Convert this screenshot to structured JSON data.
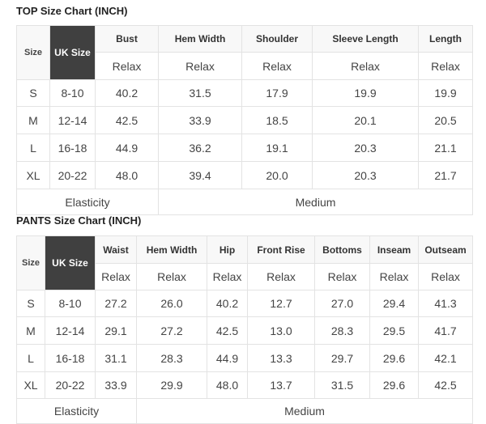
{
  "top": {
    "title": "TOP Size Chart (INCH)",
    "size_label": "Size",
    "uk_label": "UK Size",
    "columns": [
      "Bust",
      "Hem Width",
      "Shoulder",
      "Sleeve Length",
      "Length"
    ],
    "fit": [
      "Relax",
      "Relax",
      "Relax",
      "Relax",
      "Relax"
    ],
    "rows": [
      {
        "size": "S",
        "uk": "8-10",
        "values": [
          "40.2",
          "31.5",
          "17.9",
          "19.9",
          "19.9"
        ]
      },
      {
        "size": "M",
        "uk": "12-14",
        "values": [
          "42.5",
          "33.9",
          "18.5",
          "20.1",
          "20.5"
        ]
      },
      {
        "size": "L",
        "uk": "16-18",
        "values": [
          "44.9",
          "36.2",
          "19.1",
          "20.3",
          "21.1"
        ]
      },
      {
        "size": "XL",
        "uk": "20-22",
        "values": [
          "48.0",
          "39.4",
          "20.0",
          "20.3",
          "21.7"
        ]
      }
    ],
    "elasticity_label": "Elasticity",
    "elasticity_value": "Medium"
  },
  "pants": {
    "title": "PANTS Size Chart (INCH)",
    "size_label": "Size",
    "uk_label": "UK Size",
    "columns": [
      "Waist",
      "Hem Width",
      "Hip",
      "Front Rise",
      "Bottoms",
      "Inseam",
      "Outseam"
    ],
    "fit": [
      "Relax",
      "Relax",
      "Relax",
      "Relax",
      "Relax",
      "Relax",
      "Relax"
    ],
    "rows": [
      {
        "size": "S",
        "uk": "8-10",
        "values": [
          "27.2",
          "26.0",
          "40.2",
          "12.7",
          "27.0",
          "29.4",
          "41.3"
        ]
      },
      {
        "size": "M",
        "uk": "12-14",
        "values": [
          "29.1",
          "27.2",
          "42.5",
          "13.0",
          "28.3",
          "29.5",
          "41.7"
        ]
      },
      {
        "size": "L",
        "uk": "16-18",
        "values": [
          "31.1",
          "28.3",
          "44.9",
          "13.3",
          "29.7",
          "29.6",
          "42.1"
        ]
      },
      {
        "size": "XL",
        "uk": "20-22",
        "values": [
          "33.9",
          "29.9",
          "48.0",
          "13.7",
          "31.5",
          "29.6",
          "42.5"
        ]
      }
    ],
    "elasticity_label": "Elasticity",
    "elasticity_value": "Medium"
  }
}
